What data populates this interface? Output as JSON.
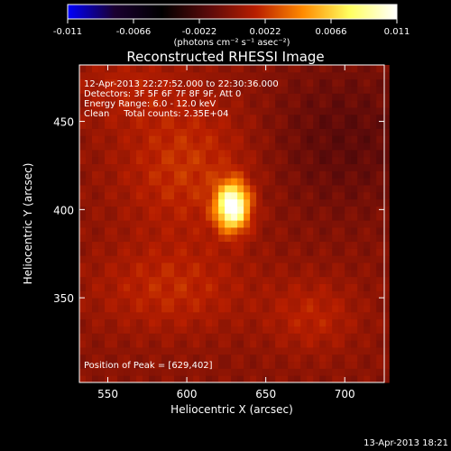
{
  "chart_data": {
    "type": "heatmap",
    "title": "Reconstructed RHESSI Image",
    "xlabel": "Heliocentric X (arcsec)",
    "ylabel": "Heliocentric Y (arcsec)",
    "xlim": [
      532,
      725
    ],
    "ylim": [
      302,
      482
    ],
    "xticks": [
      550,
      600,
      650,
      700
    ],
    "yticks": [
      350,
      400,
      450
    ],
    "colorbar": {
      "ticks": [
        "-0.011",
        "-0.0066",
        "-0.0022",
        "0.0022",
        "0.0066",
        "0.011"
      ],
      "range": [
        -0.011,
        0.011
      ],
      "unit_label": "(photons cm⁻² s⁻¹ asec⁻²)",
      "colors": [
        "#0000ff",
        "#1a0030",
        "#000000",
        "#5a0a0a",
        "#b81e00",
        "#ff8a00",
        "#ffff60",
        "#ffffff"
      ]
    },
    "annotations": [
      "12-Apr-2013 22:27:52.000 to 22:30:36.000",
      "Detectors: 3F 5F 6F 7F 8F 9F, Att 0",
      "Energy Range: 6.0 - 12.0 keV",
      "Clean     Total counts: 2.35E+04"
    ],
    "peak_label": "Position of Peak = [629,402]",
    "peak": {
      "x": 629,
      "y": 402,
      "value": 0.011
    },
    "sources": [
      {
        "x": 629,
        "y": 402,
        "sx": 7,
        "sy": 9,
        "amp": 0.0115
      },
      {
        "x": 600,
        "y": 425,
        "sx": 30,
        "sy": 28,
        "amp": 0.0022
      },
      {
        "x": 590,
        "y": 355,
        "sx": 35,
        "sy": 18,
        "amp": 0.0018
      },
      {
        "x": 680,
        "y": 340,
        "sx": 20,
        "sy": 15,
        "amp": 0.0016
      },
      {
        "x": 560,
        "y": 470,
        "sx": 25,
        "sy": 15,
        "amp": 0.0012
      },
      {
        "x": 700,
        "y": 440,
        "sx": 35,
        "sy": 30,
        "amp": -0.0015
      }
    ]
  },
  "footer": {
    "timestamp": "13-Apr-2013 18:21"
  }
}
